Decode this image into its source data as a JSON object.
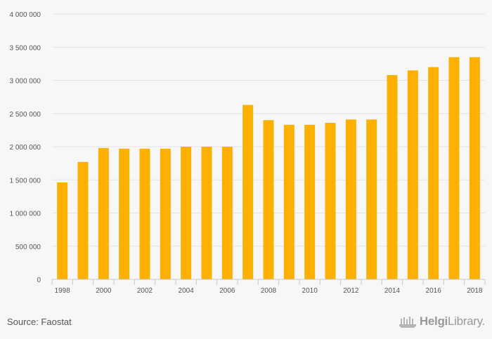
{
  "chart_data": {
    "type": "bar",
    "categories": [
      "1998",
      "1999",
      "2000",
      "2001",
      "2002",
      "2003",
      "2004",
      "2005",
      "2006",
      "2007",
      "2008",
      "2009",
      "2010",
      "2011",
      "2012",
      "2013",
      "2014",
      "2015",
      "2016",
      "2017",
      "2018"
    ],
    "values": [
      1460000,
      1770000,
      1980000,
      1970000,
      1970000,
      1970000,
      2000000,
      2000000,
      2000000,
      2630000,
      2400000,
      2330000,
      2330000,
      2360000,
      2410000,
      2410000,
      3080000,
      3150000,
      3200000,
      3350000,
      3350000
    ],
    "x_tick_labels": [
      "1998",
      "2000",
      "2002",
      "2004",
      "2006",
      "2008",
      "2010",
      "2012",
      "2014",
      "2016",
      "2018"
    ],
    "y_ticks": [
      0,
      500000,
      1000000,
      1500000,
      2000000,
      2500000,
      3000000,
      3500000,
      4000000
    ],
    "y_tick_labels": [
      "0",
      "500 000",
      "1 000 000",
      "1 500 000",
      "2 000 000",
      "2 500 000",
      "3 000 000",
      "3 500 000",
      "4 000 000"
    ],
    "ylim": [
      0,
      4000000
    ],
    "title": "",
    "xlabel": "",
    "ylabel": "",
    "grid": true,
    "bar_color": "#fbb002"
  },
  "footer": {
    "source": "Source: Faostat",
    "logo_part1": "Helgi",
    "logo_part2": "Library."
  }
}
